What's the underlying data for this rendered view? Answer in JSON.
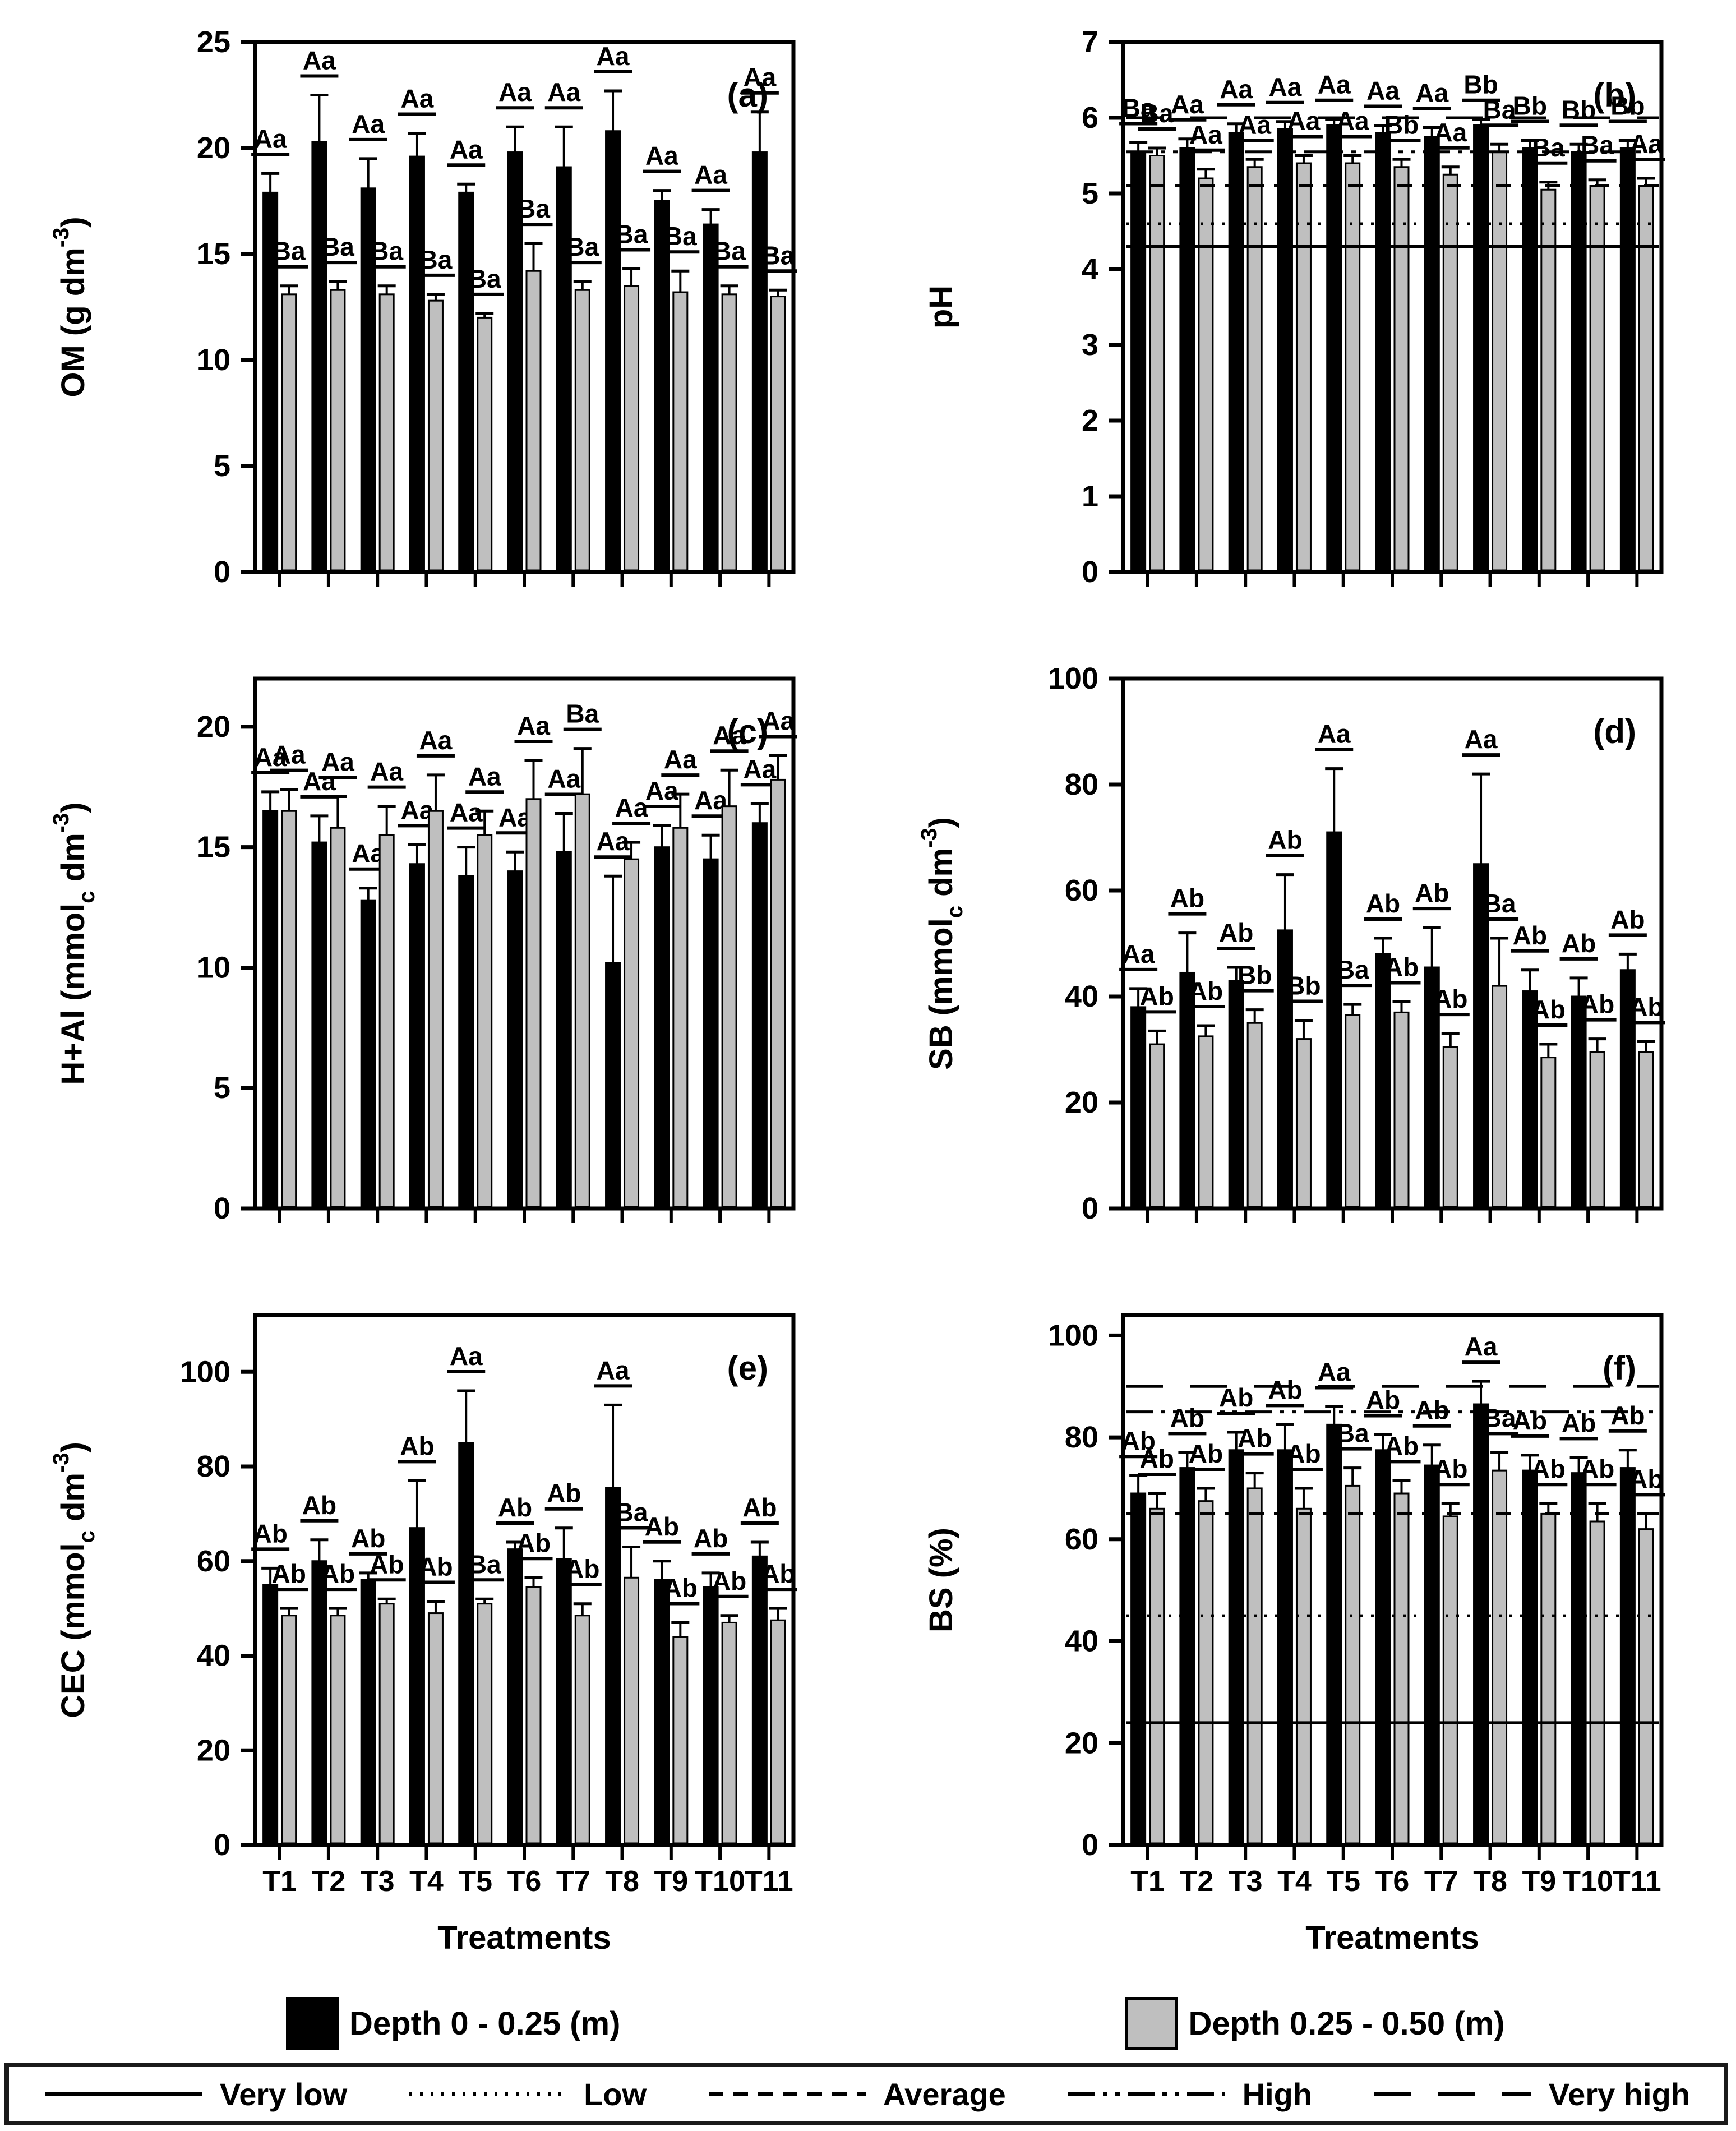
{
  "figure": {
    "x_axis_title": "Treatments",
    "treatments": [
      "T1",
      "T2",
      "T3",
      "T4",
      "T5",
      "T6",
      "T7",
      "T8",
      "T9",
      "T10",
      "T11"
    ],
    "series_names": [
      "Depth 0 - 0.25 (m)",
      "Depth 0.25 - 0.50 (m)"
    ],
    "colors": {
      "depth1": "#000000",
      "depth2": "#bfbfbf",
      "line": "#000000"
    }
  },
  "chart_data": [
    {
      "id": "a",
      "type": "bar",
      "panel_tag": "(a)",
      "ylabel": "OM (g dm-3)",
      "ylabel_parts": [
        {
          "t": "OM (g dm"
        },
        {
          "t": "-3",
          "sup": true
        },
        {
          "t": ")"
        }
      ],
      "ylim": [
        0,
        25
      ],
      "yticks": [
        0,
        5,
        10,
        15,
        20,
        25
      ],
      "categories": [
        "T1",
        "T2",
        "T3",
        "T4",
        "T5",
        "T6",
        "T7",
        "T8",
        "T9",
        "T10",
        "T11"
      ],
      "show_x_labels": false,
      "xlabel": "",
      "series": [
        {
          "name": "Depth 0 - 0.25 (m)",
          "color": "#000000",
          "values": [
            17.9,
            20.3,
            18.1,
            19.6,
            17.9,
            19.8,
            19.1,
            20.8,
            17.5,
            16.4,
            19.8
          ],
          "errors": [
            0.9,
            2.2,
            1.4,
            1.1,
            0.4,
            1.2,
            1.9,
            1.9,
            0.5,
            0.7,
            1.9
          ],
          "letters": [
            "Aa",
            "Aa",
            "Aa",
            "Aa",
            "Aa",
            "Aa",
            "Aa",
            "Aa",
            "Aa",
            "Aa",
            "Aa"
          ]
        },
        {
          "name": "Depth 0.25 - 0.50 (m)",
          "color": "#bfbfbf",
          "values": [
            13.1,
            13.3,
            13.1,
            12.8,
            12.0,
            14.2,
            13.3,
            13.5,
            13.2,
            13.1,
            13.0
          ],
          "errors": [
            0.4,
            0.4,
            0.4,
            0.3,
            0.2,
            1.3,
            0.4,
            0.8,
            1.0,
            0.4,
            0.3
          ],
          "letters": [
            "Ba",
            "Ba",
            "Ba",
            "Ba",
            "Ba",
            "Ba",
            "Ba",
            "Ba",
            "Ba",
            "Ba",
            "Ba"
          ]
        }
      ],
      "ref_lines": []
    },
    {
      "id": "b",
      "type": "bar",
      "panel_tag": "(b)",
      "ylabel": "pH",
      "ylabel_parts": [
        {
          "t": "pH"
        }
      ],
      "ylim": [
        0,
        7
      ],
      "yticks": [
        0,
        1,
        2,
        3,
        4,
        5,
        6,
        7
      ],
      "categories": [
        "T1",
        "T2",
        "T3",
        "T4",
        "T5",
        "T6",
        "T7",
        "T8",
        "T9",
        "T10",
        "T11"
      ],
      "show_x_labels": false,
      "xlabel": "",
      "series": [
        {
          "name": "Depth 0 - 0.25 (m)",
          "color": "#000000",
          "values": [
            5.55,
            5.6,
            5.8,
            5.85,
            5.9,
            5.8,
            5.75,
            5.9,
            5.6,
            5.55,
            5.6
          ],
          "errors": [
            0.12,
            0.12,
            0.12,
            0.1,
            0.08,
            0.1,
            0.12,
            0.08,
            0.1,
            0.1,
            0.1
          ],
          "letters": [
            "Ba",
            "Aa",
            "Aa",
            "Aa",
            "Aa",
            "Aa",
            "Aa",
            "Bb",
            "Bb",
            "Bb",
            "Bb"
          ]
        },
        {
          "name": "Depth 0.25 - 0.50 (m)",
          "color": "#bfbfbf",
          "values": [
            5.5,
            5.2,
            5.35,
            5.4,
            5.4,
            5.35,
            5.25,
            5.55,
            5.05,
            5.1,
            5.1
          ],
          "errors": [
            0.1,
            0.12,
            0.1,
            0.1,
            0.1,
            0.1,
            0.1,
            0.1,
            0.1,
            0.08,
            0.1
          ],
          "letters": [
            "Ba",
            "Aa",
            "Aa",
            "Aa",
            "Aa",
            "Bb",
            "Aa",
            "Ba",
            "Ba",
            "Ba",
            "Aa"
          ]
        }
      ],
      "ref_lines": [
        {
          "level": "Very low",
          "value": 4.3,
          "style": "solid"
        },
        {
          "level": "Low",
          "value": 4.6,
          "style": "dotted"
        },
        {
          "level": "Average",
          "value": 5.1,
          "style": "dashed"
        },
        {
          "level": "High",
          "value": 5.55,
          "style": "dashdotdot"
        },
        {
          "level": "Very high",
          "value": 6.0,
          "style": "longdash"
        }
      ]
    },
    {
      "id": "c",
      "type": "bar",
      "panel_tag": "(c)",
      "ylabel": "H+Al (mmolc dm-3)",
      "ylabel_parts": [
        {
          "t": "H+Al (mmol"
        },
        {
          "t": "c",
          "sub": true
        },
        {
          "t": " dm"
        },
        {
          "t": "-3",
          "sup": true
        },
        {
          "t": ")"
        }
      ],
      "ylim": [
        0,
        22
      ],
      "yticks": [
        0,
        5,
        10,
        15,
        20
      ],
      "categories": [
        "T1",
        "T2",
        "T3",
        "T4",
        "T5",
        "T6",
        "T7",
        "T8",
        "T9",
        "T10",
        "T11"
      ],
      "show_x_labels": false,
      "xlabel": "",
      "series": [
        {
          "name": "Depth 0 - 0.25 (m)",
          "color": "#000000",
          "values": [
            16.5,
            15.2,
            12.8,
            14.3,
            13.8,
            14.0,
            14.8,
            10.2,
            15.0,
            14.5,
            16.0
          ],
          "errors": [
            0.8,
            1.1,
            0.5,
            0.8,
            1.2,
            0.8,
            1.6,
            3.6,
            0.9,
            1.0,
            0.8
          ],
          "letters": [
            "Aa",
            "Aa",
            "Aa",
            "Aa",
            "Aa",
            "Aa",
            "Aa",
            "Aa",
            "Aa",
            "Aa",
            "Aa"
          ]
        },
        {
          "name": "Depth 0.25 - 0.50 (m)",
          "color": "#bfbfbf",
          "values": [
            16.5,
            15.8,
            15.5,
            16.5,
            15.5,
            17.0,
            17.2,
            14.5,
            15.8,
            16.7,
            17.8
          ],
          "errors": [
            0.9,
            1.3,
            1.2,
            1.5,
            1.0,
            1.6,
            1.9,
            0.7,
            1.4,
            1.5,
            1.0
          ],
          "letters": [
            "Aa",
            "Aa",
            "Aa",
            "Aa",
            "Aa",
            "Aa",
            "Ba",
            "Aa",
            "Aa",
            "Aa",
            "Aa"
          ]
        }
      ],
      "ref_lines": []
    },
    {
      "id": "d",
      "type": "bar",
      "panel_tag": "(d)",
      "ylabel": "SB (mmolc dm-3)",
      "ylabel_parts": [
        {
          "t": "SB (mmol"
        },
        {
          "t": "c",
          "sub": true
        },
        {
          "t": " dm"
        },
        {
          "t": "-3",
          "sup": true
        },
        {
          "t": ")"
        }
      ],
      "ylim": [
        0,
        100
      ],
      "yticks": [
        0,
        20,
        40,
        60,
        80,
        100
      ],
      "categories": [
        "T1",
        "T2",
        "T3",
        "T4",
        "T5",
        "T6",
        "T7",
        "T8",
        "T9",
        "T10",
        "T11"
      ],
      "show_x_labels": false,
      "xlabel": "",
      "series": [
        {
          "name": "Depth 0 - 0.25 (m)",
          "color": "#000000",
          "values": [
            38,
            44.5,
            43,
            52.5,
            71,
            48,
            45.5,
            65,
            41,
            40,
            45
          ],
          "errors": [
            3.5,
            7.5,
            2.5,
            10.5,
            12,
            3,
            7.5,
            17,
            4,
            3.5,
            3
          ],
          "letters": [
            "Aa",
            "Ab",
            "Ab",
            "Ab",
            "Aa",
            "Ab",
            "Ab",
            "Aa",
            "Ab",
            "Ab",
            "Ab"
          ]
        },
        {
          "name": "Depth 0.25 - 0.50 (m)",
          "color": "#bfbfbf",
          "values": [
            31,
            32.5,
            35,
            32,
            36.5,
            37,
            30.5,
            42,
            28.5,
            29.5,
            29.5
          ],
          "errors": [
            2.5,
            2,
            2.5,
            3.5,
            2,
            2,
            2.5,
            9,
            2.5,
            2.5,
            2
          ],
          "letters": [
            "Ab",
            "Ab",
            "Bb",
            "Bb",
            "Ba",
            "Ab",
            "Ab",
            "Ba",
            "Ab",
            "Ab",
            "Ab"
          ]
        }
      ],
      "ref_lines": []
    },
    {
      "id": "e",
      "type": "bar",
      "panel_tag": "(e)",
      "ylabel": "CEC (mmolc dm-3)",
      "ylabel_parts": [
        {
          "t": "CEC (mmol"
        },
        {
          "t": "c",
          "sub": true
        },
        {
          "t": " dm"
        },
        {
          "t": "-3",
          "sup": true
        },
        {
          "t": ")"
        }
      ],
      "ylim": [
        0,
        112
      ],
      "yticks": [
        0,
        20,
        40,
        60,
        80,
        100
      ],
      "categories": [
        "T1",
        "T2",
        "T3",
        "T4",
        "T5",
        "T6",
        "T7",
        "T8",
        "T9",
        "T10",
        "T11"
      ],
      "show_x_labels": true,
      "xlabel": "Treatments",
      "series": [
        {
          "name": "Depth 0 - 0.25 (m)",
          "color": "#000000",
          "values": [
            55,
            60,
            56,
            67,
            85,
            62.5,
            60.5,
            75.5,
            56,
            54.5,
            61
          ],
          "errors": [
            3.5,
            4.5,
            1.5,
            10,
            11,
            1.5,
            6.5,
            17.5,
            4,
            3,
            3
          ],
          "letters": [
            "Ab",
            "Ab",
            "Ab",
            "Ab",
            "Aa",
            "Ab",
            "Ab",
            "Aa",
            "Ab",
            "Ab",
            "Ab"
          ]
        },
        {
          "name": "Depth 0.25 - 0.50 (m)",
          "color": "#bfbfbf",
          "values": [
            48.5,
            48.5,
            51,
            49,
            51,
            54.5,
            48.5,
            56.5,
            44,
            47,
            47.5
          ],
          "errors": [
            1.5,
            1.5,
            1,
            2.5,
            1,
            2,
            2.5,
            6.5,
            3,
            1.5,
            2.5
          ],
          "letters": [
            "Ab",
            "Ab",
            "Ab",
            "Ab",
            "Ba",
            "Ab",
            "Ab",
            "Ba",
            "Ab",
            "Ab",
            "Ab"
          ]
        }
      ],
      "ref_lines": []
    },
    {
      "id": "f",
      "type": "bar",
      "panel_tag": "(f)",
      "ylabel": "BS (%)",
      "ylabel_parts": [
        {
          "t": "BS (%)"
        }
      ],
      "ylim": [
        0,
        104
      ],
      "yticks": [
        0,
        20,
        40,
        60,
        80,
        100
      ],
      "categories": [
        "T1",
        "T2",
        "T3",
        "T4",
        "T5",
        "T6",
        "T7",
        "T8",
        "T9",
        "T10",
        "T11"
      ],
      "show_x_labels": true,
      "xlabel": "Treatments",
      "series": [
        {
          "name": "Depth 0 - 0.25 (m)",
          "color": "#000000",
          "values": [
            69,
            74,
            77.5,
            77.5,
            82.5,
            77.5,
            74.5,
            86.5,
            73.5,
            73,
            74
          ],
          "errors": [
            3.5,
            3,
            3.5,
            5,
            3.5,
            3,
            4,
            4.5,
            3,
            3,
            3.5
          ],
          "letters": [
            "Ab",
            "Ab",
            "Ab",
            "Ab",
            "Aa",
            "Ab",
            "Ab",
            "Aa",
            "Ab",
            "Ab",
            "Ab"
          ]
        },
        {
          "name": "Depth 0.25 - 0.50 (m)",
          "color": "#bfbfbf",
          "values": [
            66,
            67.5,
            70,
            66,
            70.5,
            69,
            64.5,
            73.5,
            65,
            63.5,
            62
          ],
          "errors": [
            3,
            2.5,
            3,
            4,
            3.5,
            2.5,
            2.5,
            3.5,
            2,
            3.5,
            3
          ],
          "letters": [
            "Ab",
            "Ab",
            "Ab",
            "Ab",
            "Ba",
            "Ab",
            "Ab",
            "Ba",
            "Ab",
            "Ab",
            "Ab"
          ]
        }
      ],
      "ref_lines": [
        {
          "level": "Very low",
          "value": 24,
          "style": "solid"
        },
        {
          "level": "Low",
          "value": 45,
          "style": "dotted"
        },
        {
          "level": "Average",
          "value": 65,
          "style": "dashed"
        },
        {
          "level": "High",
          "value": 85,
          "style": "dashdotdot"
        },
        {
          "level": "Very high",
          "value": 90,
          "style": "longdash"
        }
      ]
    }
  ],
  "depth_legend": {
    "items": [
      {
        "label": "Depth 0 - 0.25 (m)",
        "color": "#000000"
      },
      {
        "label": "Depth 0.25 - 0.50 (m)",
        "color": "#bfbfbf"
      }
    ]
  },
  "levels_legend": {
    "items": [
      {
        "label": "Very low",
        "style": "solid"
      },
      {
        "label": "Low",
        "style": "dotted"
      },
      {
        "label": "Average",
        "style": "dashed"
      },
      {
        "label": "High",
        "style": "dashdotdot"
      },
      {
        "label": "Very high",
        "style": "longdash"
      }
    ]
  }
}
